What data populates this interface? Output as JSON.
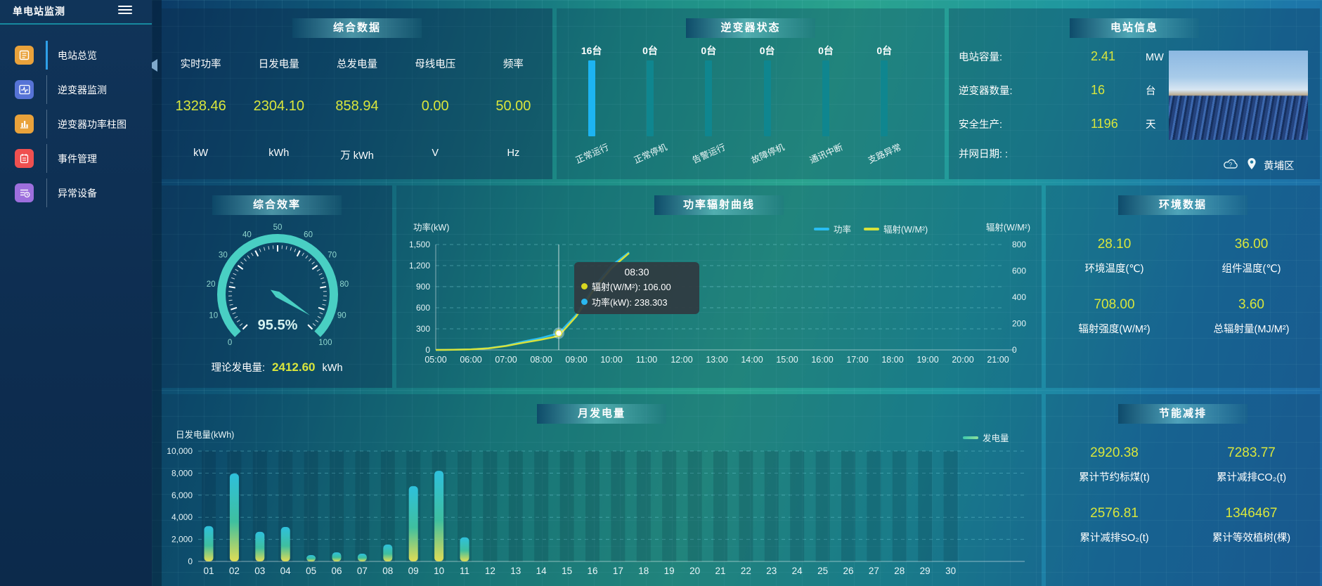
{
  "app": {
    "title": "单电站监测"
  },
  "sidebar": {
    "items": [
      {
        "key": "station-overview",
        "label": "电站总览",
        "icon": "overview-icon",
        "icon_color": "#e9a23b",
        "active": true
      },
      {
        "key": "inverter-monitor",
        "label": "逆变器监测",
        "icon": "inverter-monitor-icon",
        "icon_color": "#5673d6",
        "active": false
      },
      {
        "key": "inverter-power-bars",
        "label": "逆变器功率柱图",
        "icon": "inverter-power-bars-icon",
        "icon_color": "#e9a23b",
        "active": false
      },
      {
        "key": "event-management",
        "label": "事件管理",
        "icon": "event-management-icon",
        "icon_color": "#ef5050",
        "active": false
      },
      {
        "key": "abnormal-devices",
        "label": "异常设备",
        "icon": "abnormal-devices-icon",
        "icon_color": "#9d6fdd",
        "active": false
      }
    ]
  },
  "panels": {
    "summary": {
      "title": "综合数据",
      "metrics": [
        {
          "label": "实时功率",
          "value": "1328.46",
          "unit": "kW"
        },
        {
          "label": "日发电量",
          "value": "2304.10",
          "unit": "kWh"
        },
        {
          "label": "总发电量",
          "value": "858.94",
          "unit": "万 kWh"
        },
        {
          "label": "母线电压",
          "value": "0.00",
          "unit": "V"
        },
        {
          "label": "频率",
          "value": "50.00",
          "unit": "Hz"
        }
      ]
    },
    "inverter_status": {
      "title": "逆变器状态",
      "bars": [
        {
          "count": "16台",
          "label": "正常运行",
          "highlight": true
        },
        {
          "count": "0台",
          "label": "正常停机",
          "highlight": false
        },
        {
          "count": "0台",
          "label": "告警运行",
          "highlight": false
        },
        {
          "count": "0台",
          "label": "故障停机",
          "highlight": false
        },
        {
          "count": "0台",
          "label": "通讯中断",
          "highlight": false
        },
        {
          "count": "0台",
          "label": "支路异常",
          "highlight": false
        }
      ]
    },
    "station_info": {
      "title": "电站信息",
      "rows": [
        {
          "label": "电站容量:",
          "value": "2.41",
          "unit": "MW"
        },
        {
          "label": "逆变器数量:",
          "value": "16",
          "unit": "台"
        },
        {
          "label": "安全生产:",
          "value": "1196",
          "unit": "天"
        },
        {
          "label": "并网日期: :",
          "value": "",
          "unit": ""
        }
      ],
      "district": "黄埔区"
    },
    "efficiency": {
      "title": "综合效率",
      "theory_label": "理论发电量:",
      "theory_value": "2412.60",
      "theory_unit": "kWh"
    },
    "power_radiation": {
      "title": "功率辐射曲线"
    },
    "environment": {
      "title": "环境数据",
      "stats": [
        {
          "value": "28.10",
          "label": "环境温度(℃)"
        },
        {
          "value": "36.00",
          "label": "组件温度(℃)"
        },
        {
          "value": "708.00",
          "label": "辐射强度(W/M²)"
        },
        {
          "value": "3.60",
          "label": "总辐射量(MJ/M²)"
        }
      ]
    },
    "monthly": {
      "title": "月发电量"
    },
    "saving": {
      "title": "节能减排",
      "stats": [
        {
          "value": "2920.38",
          "label": "累计节约标煤(t)"
        },
        {
          "value": "7283.77",
          "label": "累计减排CO₂(t)"
        },
        {
          "value": "2576.81",
          "label": "累计减排SO₂(t)"
        },
        {
          "value": "1346467",
          "label": "累计等效植树(棵)"
        }
      ]
    }
  },
  "chart_data": [
    {
      "id": "inverter_status",
      "type": "bar",
      "categories": [
        "正常运行",
        "正常停机",
        "告警运行",
        "故障停机",
        "通讯中断",
        "支路异常"
      ],
      "values": [
        16,
        0,
        0,
        0,
        0,
        0
      ],
      "unit": "台",
      "highlight_color": "#1db4f2",
      "bar_color": "#0f868f"
    },
    {
      "id": "efficiency_gauge",
      "type": "gauge",
      "min": 0,
      "max": 100,
      "value": 95.5,
      "label": "95.5%",
      "tick_labels": [
        "0",
        "10",
        "20",
        "30",
        "40",
        "50",
        "60",
        "70",
        "80",
        "90",
        "100"
      ],
      "color": "#49cfc3"
    },
    {
      "id": "power_radiation",
      "type": "line",
      "x_ticks": [
        "05:00",
        "06:00",
        "07:00",
        "08:00",
        "09:00",
        "10:00",
        "11:00",
        "12:00",
        "13:00",
        "14:00",
        "15:00",
        "16:00",
        "17:00",
        "18:00",
        "19:00",
        "20:00",
        "21:00"
      ],
      "left_axis": {
        "name": "功率(kW)",
        "max": 1500,
        "tick_labels": [
          "0",
          "300",
          "600",
          "900",
          "1,200",
          "1,500"
        ]
      },
      "right_axis": {
        "name": "辐射(W/M²)",
        "max": 800,
        "tick_labels": [
          "0",
          "200",
          "400",
          "600",
          "800"
        ]
      },
      "series": [
        {
          "name": "功率",
          "color": "#29bdf2",
          "axis": "left",
          "points": [
            [
              5,
              0
            ],
            [
              5.5,
              2
            ],
            [
              6,
              8
            ],
            [
              6.5,
              25
            ],
            [
              7,
              60
            ],
            [
              7.5,
              120
            ],
            [
              8,
              170
            ],
            [
              8.5,
              238.3
            ],
            [
              9,
              500
            ],
            [
              9.5,
              900
            ],
            [
              10,
              1200
            ],
            [
              10.5,
              1390
            ]
          ]
        },
        {
          "name": "辐射(W/M²)",
          "color": "#d8e23a",
          "axis": "right",
          "points": [
            [
              5,
              0
            ],
            [
              5.5,
              1
            ],
            [
              6,
              4
            ],
            [
              6.5,
              12
            ],
            [
              7,
              30
            ],
            [
              7.5,
              55
            ],
            [
              8,
              78
            ],
            [
              8.5,
              106
            ],
            [
              9,
              255
            ],
            [
              9.5,
              460
            ],
            [
              10,
              620
            ],
            [
              10.5,
              735
            ]
          ]
        }
      ],
      "tooltip": {
        "time": "08:30",
        "x_hour": 8.5,
        "marker_series": 0,
        "rows": [
          {
            "color": "#d8d620",
            "text": "辐射(W/M²): 106.00"
          },
          {
            "color": "#2ab8f0",
            "text": "功率(kW): 238.303"
          }
        ]
      }
    },
    {
      "id": "monthly_energy",
      "type": "bar",
      "ylabel": "日发电量(kWh)",
      "legend": "发电量",
      "ymax": 10000,
      "y_tick_labels": [
        "0",
        "2,000",
        "4,000",
        "6,000",
        "8,000",
        "10,000"
      ],
      "categories": [
        "01",
        "02",
        "03",
        "04",
        "05",
        "06",
        "07",
        "08",
        "09",
        "10",
        "11",
        "12",
        "13",
        "14",
        "15",
        "16",
        "17",
        "18",
        "19",
        "20",
        "21",
        "22",
        "23",
        "24",
        "25",
        "26",
        "27",
        "28",
        "29",
        "30"
      ],
      "values": [
        3200,
        7960,
        2680,
        3120,
        570,
        820,
        700,
        1530,
        6820,
        8210,
        2180,
        0,
        0,
        0,
        0,
        0,
        0,
        0,
        0,
        0,
        0,
        0,
        0,
        0,
        0,
        0,
        0,
        0,
        0,
        0
      ]
    }
  ]
}
